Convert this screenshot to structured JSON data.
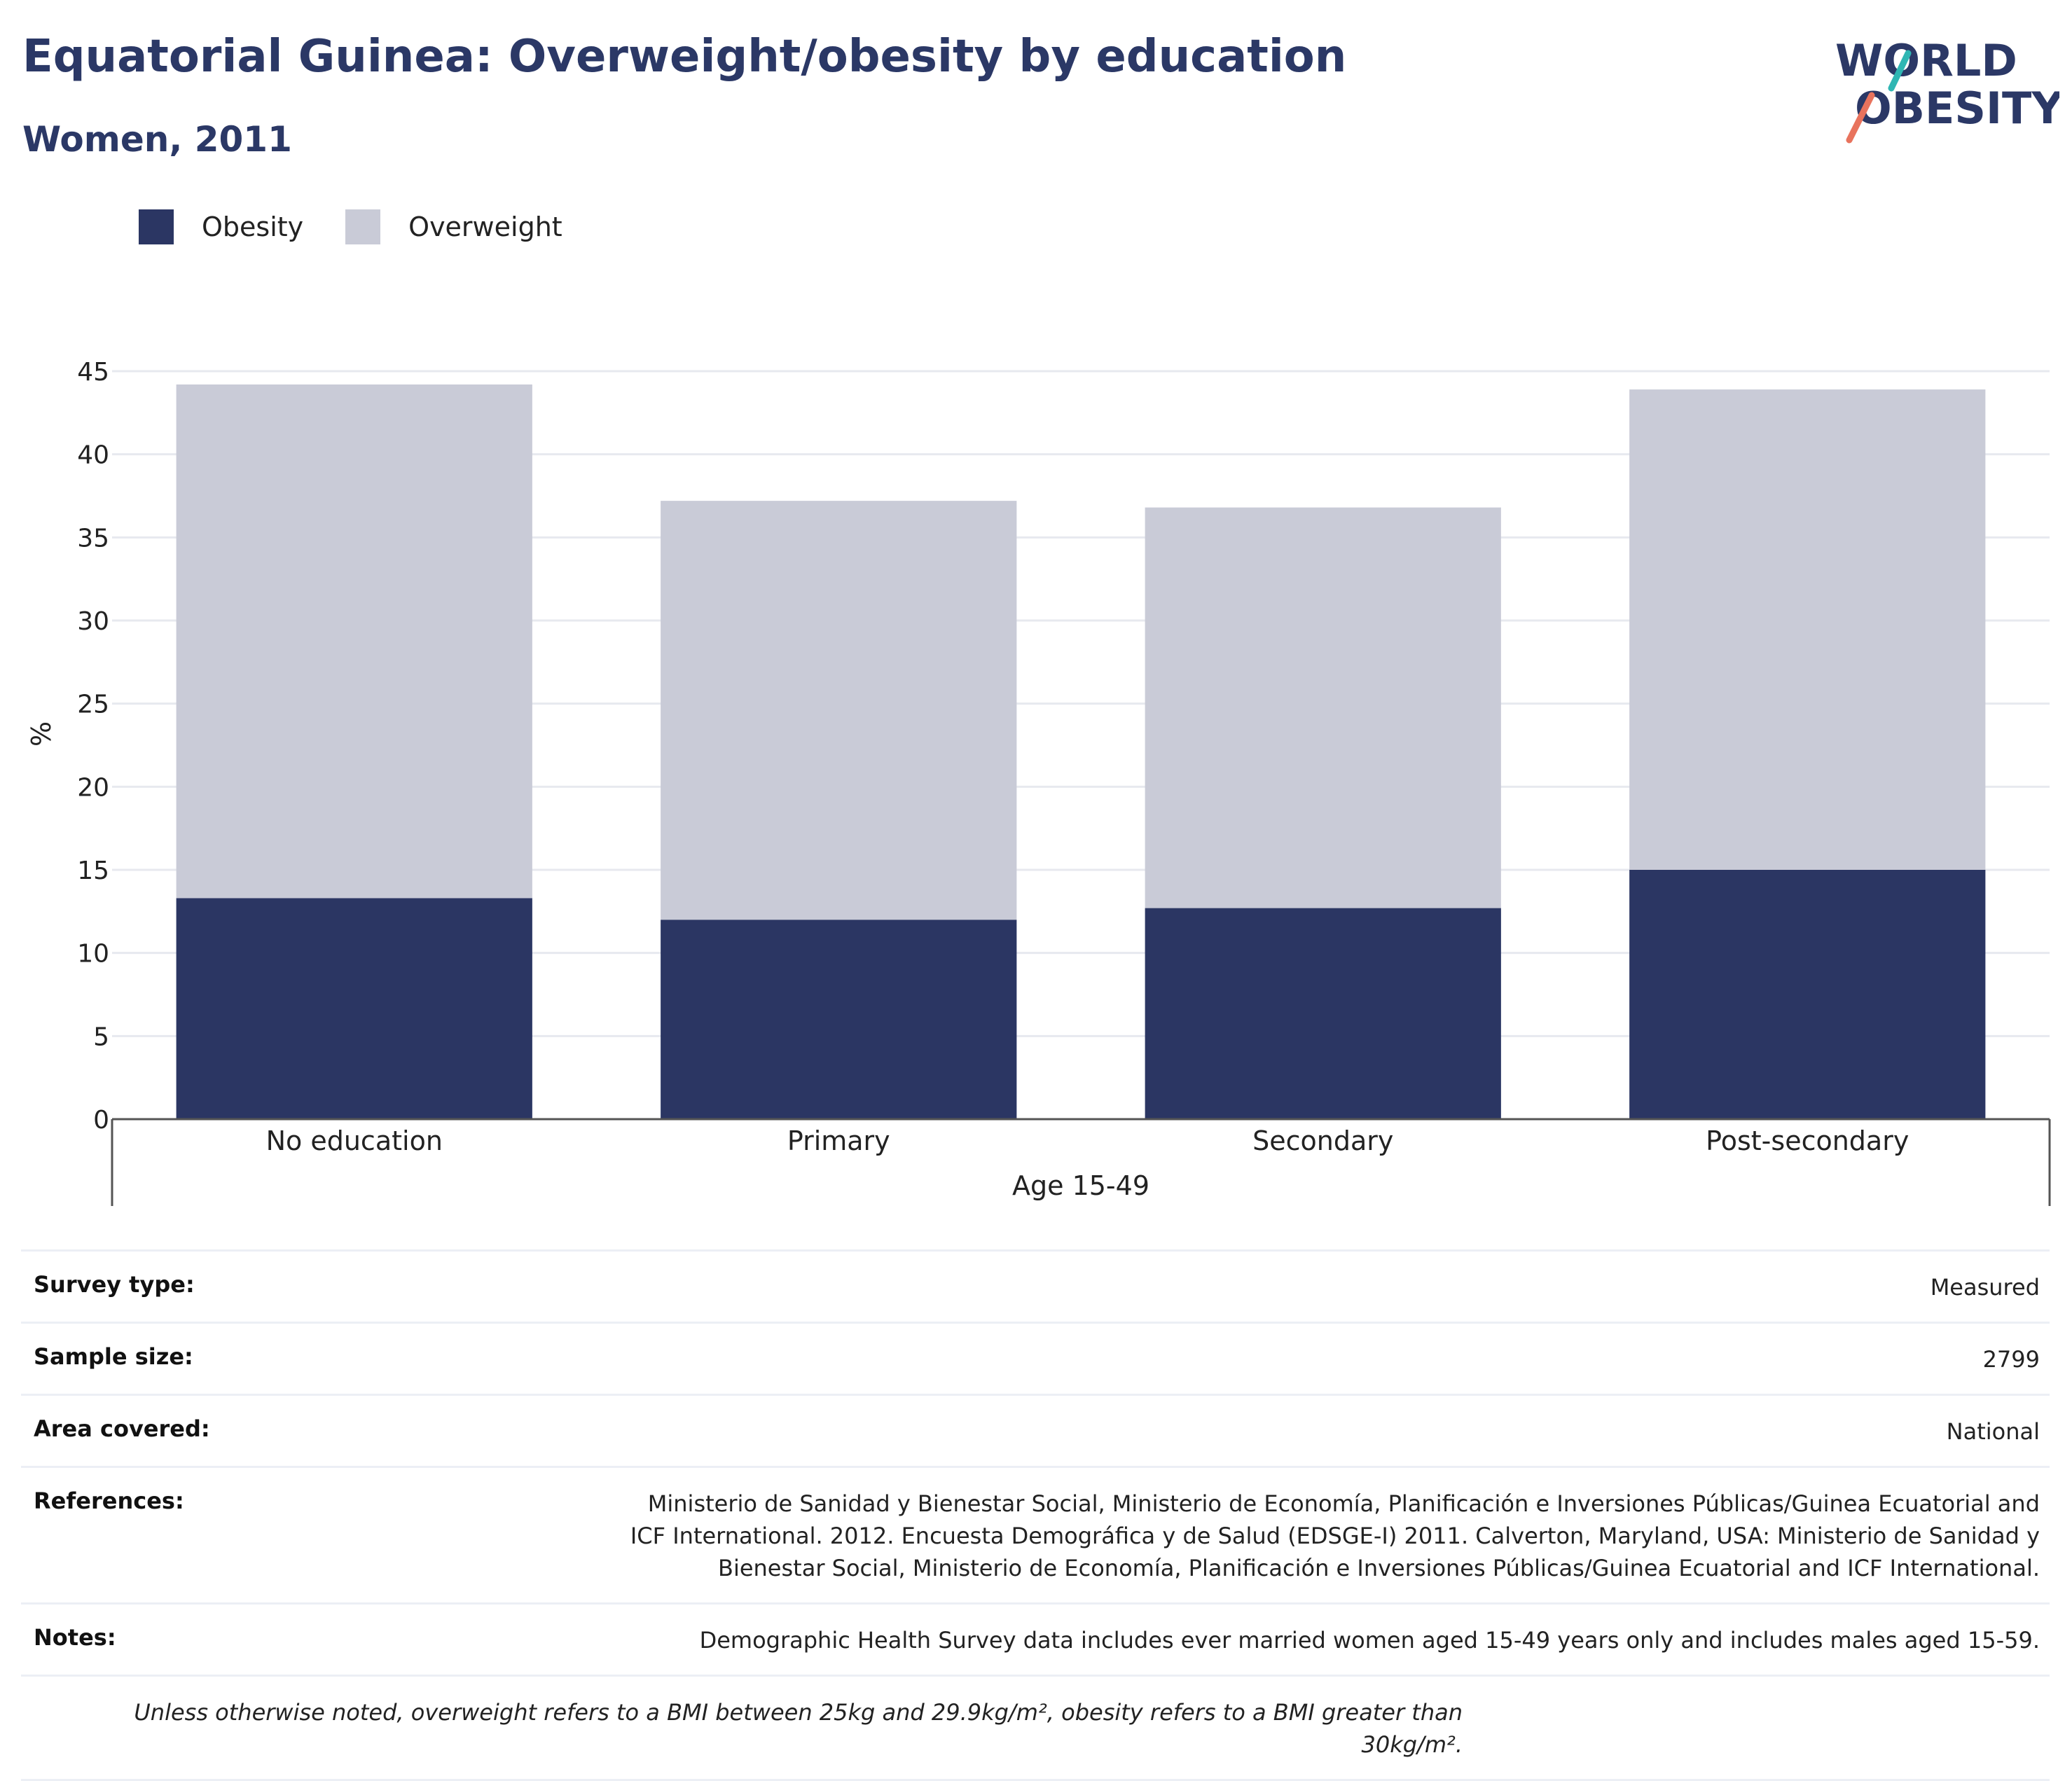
{
  "header": {
    "title": "Equatorial Guinea: Overweight/obesity by education",
    "subtitle": "Women, 2011"
  },
  "logo": {
    "line1": "WORLD",
    "line2": "OBESITY",
    "accent_teal": "#2fb6b3",
    "accent_coral": "#e8735d"
  },
  "legend": [
    {
      "label": "Obesity",
      "color": "#2b3663"
    },
    {
      "label": "Overweight",
      "color": "#c9cbd7"
    }
  ],
  "chart_data": {
    "type": "bar",
    "stacked": true,
    "categories": [
      "No education",
      "Primary",
      "Secondary",
      "Post-secondary"
    ],
    "series": [
      {
        "name": "Obesity",
        "color": "#2b3663",
        "values": [
          13.3,
          12.0,
          12.7,
          15.0
        ]
      },
      {
        "name": "Overweight",
        "color": "#c9cbd7",
        "values": [
          30.9,
          25.2,
          24.1,
          28.9
        ]
      }
    ],
    "xlabel": "Age 15-49",
    "ylabel": "%",
    "ylim": [
      0,
      45
    ],
    "yticks": [
      0,
      5,
      10,
      15,
      20,
      25,
      30,
      35,
      40,
      45
    ],
    "grid": true,
    "legend_position": "top-left"
  },
  "info": {
    "survey_type": {
      "label": "Survey type:",
      "value": "Measured"
    },
    "sample_size": {
      "label": "Sample size:",
      "value": "2799"
    },
    "area_covered": {
      "label": "Area covered:",
      "value": "National"
    },
    "references": {
      "label": "References:",
      "value": "Ministerio de Sanidad y Bienestar Social, Ministerio de Economía, Planificación e Inversiones Públicas/Guinea Ecuatorial and ICF International. 2012. Encuesta Demográfica y de Salud (EDSGE-I) 2011. Calverton, Maryland, USA: Ministerio de Sanidad y Bienestar Social, Ministerio de Economía, Planificación e Inversiones Públicas/Guinea Ecuatorial and ICF International."
    },
    "notes": {
      "label": "Notes:",
      "value": "Demographic Health Survey data includes ever married women aged 15-49 years only and includes males aged 15-59."
    },
    "footnote": "Unless otherwise noted, overweight refers to a BMI between 25kg and 29.9kg/m², obesity refers to a BMI greater than 30kg/m²."
  }
}
